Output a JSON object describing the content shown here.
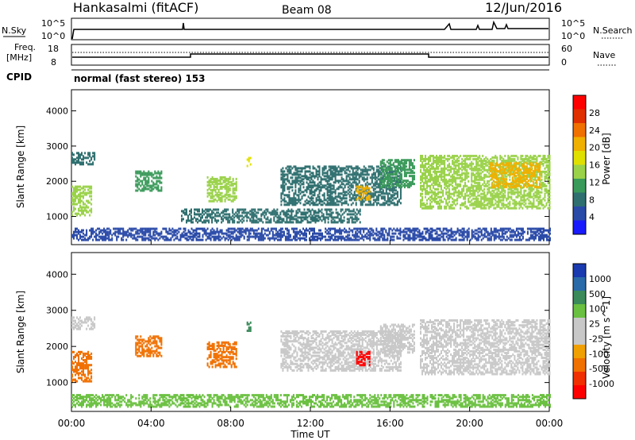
{
  "header": {
    "station": "Hankasalmi (fitACF)",
    "beam": "Beam 08",
    "date": "12/Jun/2016"
  },
  "top_panels": {
    "nsky": {
      "label": "N.Sky",
      "right_label": "N.Search",
      "tick_hi": "10^5",
      "tick_lo": "10^0",
      "tick_hi_r": "10^5",
      "tick_lo_r": "10^0"
    },
    "freq": {
      "label1": "Freq.",
      "label2": "[MHz]",
      "tick_hi": "18",
      "tick_lo": "8",
      "right_label": "Nave",
      "tick_hi_r": "60",
      "tick_lo_r": "0"
    },
    "cpid": {
      "label": "CPID",
      "value": "normal (fast stereo) 153"
    }
  },
  "colors": {
    "power": [
      "#1a1aff",
      "#2a4aa8",
      "#2f6f6f",
      "#3a9a5a",
      "#9ad24a",
      "#e0e000",
      "#f0b000",
      "#f07000",
      "#e03000",
      "#ff0000"
    ],
    "velocity": [
      "#1a3ab0",
      "#2a6aa8",
      "#3a8a5a",
      "#6ac040",
      "#c8c8c8",
      "#c8c8c8",
      "#f0a000",
      "#f07000",
      "#f03000",
      "#ff0000"
    ]
  },
  "chart_data": [
    {
      "type": "heatmap",
      "name": "power",
      "xlabel": "",
      "ylabel": "Slant Range [km]",
      "yticks": [
        "1000",
        "2000",
        "3000",
        "4000"
      ],
      "ylim": [
        200,
        4600
      ],
      "colorbar_label": "Power [dB]",
      "colorbar_ticks": [
        "4",
        "8",
        "12",
        "16",
        "20",
        "24",
        "28"
      ],
      "colorbar_range": [
        0,
        30
      ],
      "regions": [
        {
          "t0": 0.0,
          "t1": 1.0,
          "r0": 1000,
          "r1": 1850,
          "v": 14
        },
        {
          "t0": 0.0,
          "t1": 1.2,
          "r0": 2450,
          "r1": 2800,
          "v": 6
        },
        {
          "t0": 3.2,
          "t1": 4.5,
          "r0": 1700,
          "r1": 2250,
          "v": 11
        },
        {
          "t0": 6.8,
          "t1": 8.3,
          "r0": 1400,
          "r1": 2100,
          "v": 12
        },
        {
          "t0": 8.8,
          "t1": 9.0,
          "r0": 2400,
          "r1": 2650,
          "v": 16
        },
        {
          "t0": 10.5,
          "t1": 16.5,
          "r0": 1300,
          "r1": 2400,
          "v": 7
        },
        {
          "t0": 14.3,
          "t1": 15.0,
          "r0": 1450,
          "r1": 1850,
          "v": 18
        },
        {
          "t0": 15.5,
          "t1": 17.2,
          "r0": 1800,
          "r1": 2600,
          "v": 9
        },
        {
          "t0": 5.5,
          "t1": 14.5,
          "r0": 800,
          "r1": 1200,
          "v": 6
        },
        {
          "t0": 17.5,
          "t1": 24.0,
          "r0": 1200,
          "r1": 2700,
          "v": 13
        },
        {
          "t0": 21.0,
          "t1": 23.5,
          "r0": 1800,
          "r1": 2500,
          "v": 19
        },
        {
          "t0": 0.0,
          "t1": 24.0,
          "r0": 300,
          "r1": 650,
          "v": 5
        }
      ]
    },
    {
      "type": "heatmap",
      "name": "velocity",
      "xlabel": "Time UT",
      "ylabel": "Slant Range [km]",
      "xticks": [
        "00:00",
        "04:00",
        "08:00",
        "12:00",
        "16:00",
        "20:00",
        "00:00"
      ],
      "yticks": [
        "1000",
        "2000",
        "3000",
        "4000"
      ],
      "ylim": [
        200,
        4600
      ],
      "colorbar_label": "Velocity [m s^-1]",
      "colorbar_ticks": [
        "1000",
        "500",
        "100",
        "25",
        "-25",
        "-100",
        "-500",
        "-1000"
      ],
      "regions": [
        {
          "t0": 0.0,
          "t1": 1.0,
          "r0": 1000,
          "r1": 1850,
          "v": -300
        },
        {
          "t0": 0.0,
          "t1": 1.2,
          "r0": 2450,
          "r1": 2800,
          "v": 0
        },
        {
          "t0": 3.2,
          "t1": 4.5,
          "r0": 1700,
          "r1": 2250,
          "v": -200
        },
        {
          "t0": 6.8,
          "t1": 8.3,
          "r0": 1400,
          "r1": 2100,
          "v": -200
        },
        {
          "t0": 8.8,
          "t1": 9.0,
          "r0": 2400,
          "r1": 2650,
          "v": 80
        },
        {
          "t0": 10.5,
          "t1": 16.5,
          "r0": 1300,
          "r1": 2400,
          "v": 0
        },
        {
          "t0": 14.3,
          "t1": 15.0,
          "r0": 1450,
          "r1": 1850,
          "v": -600
        },
        {
          "t0": 15.5,
          "t1": 17.2,
          "r0": 1800,
          "r1": 2600,
          "v": 0
        },
        {
          "t0": 17.5,
          "t1": 24.0,
          "r0": 1200,
          "r1": 2700,
          "v": 0
        },
        {
          "t0": 0.0,
          "t1": 24.0,
          "r0": 300,
          "r1": 650,
          "v": 60
        }
      ]
    }
  ]
}
